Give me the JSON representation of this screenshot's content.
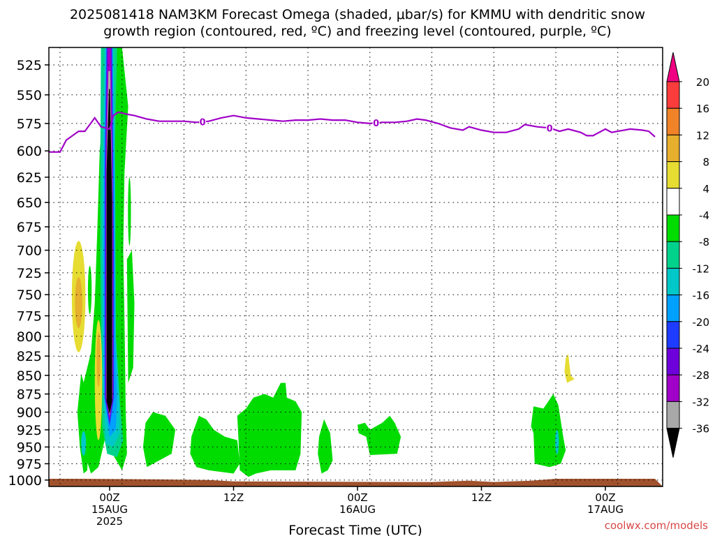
{
  "title": {
    "line1": "2025081418 NAM3KM Forecast Omega (shaded, μbar/s) for KMMU with dendritic snow",
    "line2": "growth region (contoured, red, ºC) and freezing level (contoured, purple, ºC)"
  },
  "watermark": "coolwx.com/models",
  "chart_data": {
    "type": "heatmap",
    "title": "2025081418 NAM3KM Forecast Omega (shaded, μbar/s) for KMMU with dendritic snow growth region (contoured, red, ºC) and freezing level (contoured, purple, ºC)",
    "xlabel": "Forecast Time (UTC)",
    "ylabel": "",
    "x_range_hours_from_15AUG_00Z": [
      -5,
      44
    ],
    "y_range_hPa": [
      1010,
      511
    ],
    "y_scale": "log-pressure (inverted)",
    "grid": true,
    "y_ticks": [
      525,
      550,
      575,
      600,
      625,
      650,
      675,
      700,
      725,
      750,
      775,
      800,
      825,
      850,
      875,
      900,
      925,
      950,
      975,
      1000
    ],
    "x_ticks": [
      {
        "hours": 0,
        "label": "00Z",
        "sub1": "15AUG",
        "sub2": "2025"
      },
      {
        "hours": 10,
        "label": "12Z",
        "sub1": "",
        "sub2": ""
      },
      {
        "hours": 20,
        "label": "00Z",
        "sub1": "16AUG",
        "sub2": ""
      },
      {
        "hours": 30,
        "label": "12Z",
        "sub1": "",
        "sub2": ""
      },
      {
        "hours": 40,
        "label": "00Z",
        "sub1": "17AUG",
        "sub2": ""
      }
    ],
    "colorbar": {
      "levels": [
        -36,
        -32,
        -28,
        -24,
        -20,
        -16,
        -12,
        -8,
        -4,
        4,
        8,
        12,
        16,
        20
      ],
      "labels": [
        "-36",
        "-32",
        "-28",
        "-24",
        "-20",
        "-16",
        "-12",
        "-8",
        "-4",
        "4",
        "8",
        "12",
        "16",
        "20"
      ],
      "colors": [
        "#000000",
        "#a8a8a8",
        "#a000c8",
        "#6e00dc",
        "#1e3cff",
        "#00a0ff",
        "#00c8c8",
        "#00d28c",
        "#00dc00",
        "#ffffff",
        "#e6dc32",
        "#e6af2d",
        "#f08228",
        "#fa3c3c",
        "#f00082"
      ]
    },
    "freezing_level": {
      "label": "0",
      "color": "#a000c8",
      "points": [
        [
          -5,
          601
        ],
        [
          -4,
          601
        ],
        [
          -3.5,
          590
        ],
        [
          -2.5,
          582
        ],
        [
          -2,
          582
        ],
        [
          -1.2,
          570
        ],
        [
          -0.7,
          578
        ],
        [
          0,
          580
        ],
        [
          0.3,
          568
        ],
        [
          0.7,
          565
        ],
        [
          1.5,
          567
        ],
        [
          2,
          568
        ],
        [
          3,
          571
        ],
        [
          4,
          573
        ],
        [
          5,
          573
        ],
        [
          6,
          573
        ],
        [
          7,
          574
        ],
        [
          8,
          573
        ],
        [
          9,
          570
        ],
        [
          10,
          568
        ],
        [
          11,
          570
        ],
        [
          12,
          571
        ],
        [
          13,
          572
        ],
        [
          14,
          573
        ],
        [
          15,
          572
        ],
        [
          16,
          572
        ],
        [
          17,
          571
        ],
        [
          18,
          572
        ],
        [
          19,
          572
        ],
        [
          20,
          574
        ],
        [
          21,
          575
        ],
        [
          22,
          574
        ],
        [
          23,
          574
        ],
        [
          24,
          573
        ],
        [
          24.8,
          571
        ],
        [
          25.5,
          572
        ],
        [
          26.5,
          575
        ],
        [
          27.5,
          579
        ],
        [
          28.5,
          581
        ],
        [
          29,
          578
        ],
        [
          30,
          581
        ],
        [
          31,
          583
        ],
        [
          32,
          583
        ],
        [
          33,
          580
        ],
        [
          33.5,
          576
        ],
        [
          34.5,
          578
        ],
        [
          35.5,
          579
        ],
        [
          36.3,
          582
        ],
        [
          37,
          580
        ],
        [
          38,
          583
        ],
        [
          38.5,
          586
        ],
        [
          39,
          586
        ],
        [
          39.5,
          583
        ],
        [
          40,
          580
        ],
        [
          40.5,
          583
        ],
        [
          41,
          582
        ],
        [
          42,
          580
        ],
        [
          43,
          581
        ],
        [
          43.5,
          582
        ],
        [
          44,
          587
        ]
      ]
    },
    "freezing_level_labels": [
      {
        "hours": 7.5
      },
      {
        "hours": 21.5
      },
      {
        "hours": 35.5
      }
    ],
    "omega_features": [
      {
        "name": "updraft-core",
        "value_min": -36,
        "hours": [
          -0.4,
          0.6
        ],
        "hPa": [
          515,
          905
        ]
      },
      {
        "name": "green-column-main",
        "value": -4,
        "hours": [
          -1.1,
          1.4
        ],
        "hPa": [
          511,
          990
        ]
      },
      {
        "name": "positive-lobe-upper",
        "value": 4,
        "hours": [
          -3,
          -2
        ],
        "hPa": [
          695,
          830
        ]
      },
      {
        "name": "positive-lobe-lower",
        "value": 4,
        "hours": [
          -1.2,
          -0.6
        ],
        "hPa": [
          770,
          945
        ]
      },
      {
        "name": "green-blob-early",
        "value": -4,
        "hours": [
          -2.5,
          -1.6
        ],
        "hPa": [
          845,
          990
        ]
      },
      {
        "name": "green-blob-07Z",
        "value": -4,
        "hours": [
          2.8,
          5.4
        ],
        "hPa": [
          900,
          985
        ]
      },
      {
        "name": "green-blob-10Z",
        "value": -4,
        "hours": [
          6.5,
          10.5
        ],
        "hPa": [
          905,
          990
        ]
      },
      {
        "name": "green-blob-14Z",
        "value": -4,
        "hours": [
          10.5,
          15.5
        ],
        "hPa": [
          860,
          995
        ]
      },
      {
        "name": "green-blob-17Z",
        "value": -4,
        "hours": [
          16.8,
          18.0
        ],
        "hPa": [
          915,
          990
        ]
      },
      {
        "name": "green-blob-21Z",
        "value": -4,
        "hours": [
          20.0,
          23.5
        ],
        "hPa": [
          900,
          960
        ]
      },
      {
        "name": "green-blob-02Z",
        "value": -4,
        "hours": [
          34.0,
          37.0
        ],
        "hPa": [
          870,
          985
        ]
      },
      {
        "name": "yellow-blob-02Z",
        "value": 4,
        "hours": [
          36.7,
          37.3
        ],
        "hPa": [
          820,
          860
        ]
      }
    ]
  }
}
